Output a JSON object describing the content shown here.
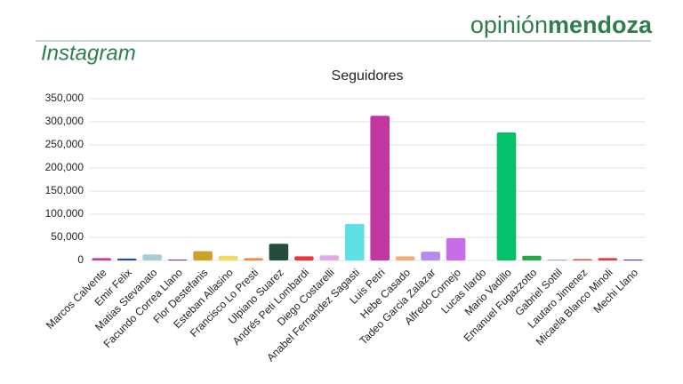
{
  "header": {
    "brand_light": "opinión",
    "brand_bold": "mendoza",
    "section": "Instagram"
  },
  "chart_data": {
    "type": "bar",
    "title": "Seguidores",
    "categories": [
      "Marcos Calvente",
      "Emir Felix",
      "Matias Stevanato",
      "Facundo Correa Llano",
      "Flor Destefanis",
      "Esteban Allasino",
      "Francisco Lo Presti",
      "Ulpiano Suarez",
      "Andrés Peti Lombardi",
      "Diego Costarelli",
      "Anabel Fernandez Sagasti",
      "Luis Petri",
      "Hebe Casado",
      "Tadeo Garcia Zalazar",
      "Alfredo Cornejo",
      "Lucas Ilardo",
      "Mario Vadillo",
      "Emanuel Fugazzotto",
      "Gabriel Sottil",
      "Lautaro Jimenez",
      "Micaela Blanco Minoli",
      "Mechi Llano"
    ],
    "values": [
      5000,
      4000,
      13000,
      2000,
      20000,
      10000,
      5000,
      36000,
      9000,
      11000,
      79000,
      313000,
      9000,
      19000,
      48000,
      0,
      277000,
      10000,
      1000,
      3000,
      5000,
      2000
    ],
    "colors": [
      "#c5399f",
      "#1f4fa6",
      "#a8cdd6",
      "#7a2e8c",
      "#c9a227",
      "#f2dc5d",
      "#ee8a3c",
      "#264d3a",
      "#e8343a",
      "#e5a9ea",
      "#5ee0e6",
      "#c2379f",
      "#f4ad77",
      "#b28cf0",
      "#c86ce8",
      "#2e7d4f",
      "#05c26a",
      "#27a94a",
      "#6a2e9c",
      "#e84a3a",
      "#e23a3a",
      "#3b2ca8"
    ],
    "ylim": [
      0,
      350000
    ],
    "yticks": [
      0,
      {
        "value": 50000,
        "label": "50,000"
      },
      {
        "value": 100000,
        "label": "100,000"
      },
      {
        "value": 150000,
        "label": "150,000"
      },
      {
        "value": 200000,
        "label": "200,000"
      },
      {
        "value": 250000,
        "label": "250,000"
      },
      {
        "value": 300000,
        "label": "300,000"
      },
      {
        "value": 350000,
        "label": "350,000"
      }
    ],
    "grid": true
  }
}
